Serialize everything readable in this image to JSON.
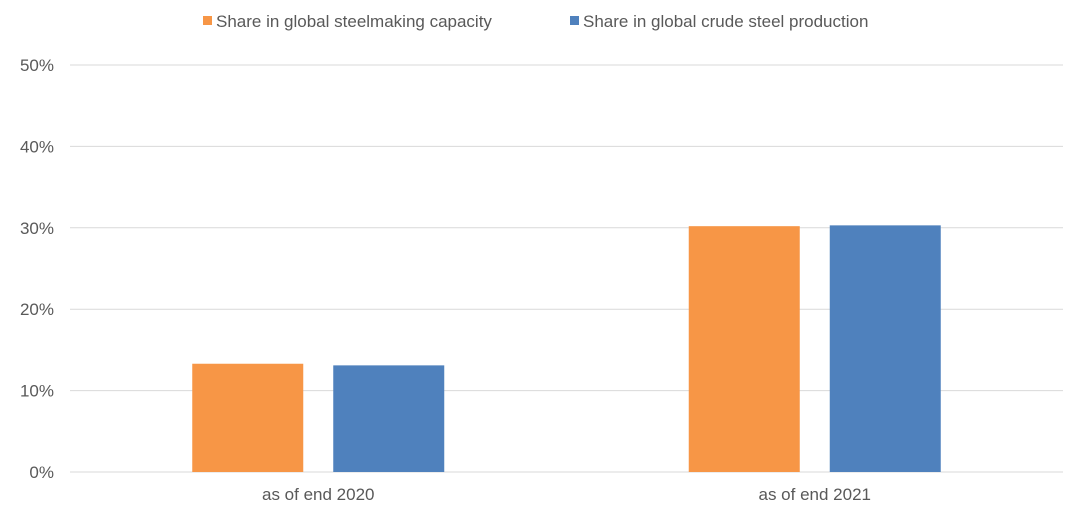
{
  "chart_data": {
    "type": "bar",
    "title": "",
    "xlabel": "",
    "ylabel": "",
    "categories": [
      "as of end 2020",
      "as of end 2021"
    ],
    "series": [
      {
        "name": "Share in global steelmaking capacity",
        "color": "#F79646",
        "values": [
          13.3,
          30.2
        ]
      },
      {
        "name": "Share in global crude steel production",
        "color": "#4F81BD",
        "values": [
          13.1,
          30.3
        ]
      }
    ],
    "ylim": [
      0,
      50
    ],
    "yticks": [
      0,
      10,
      20,
      30,
      40,
      50
    ],
    "ytick_labels": [
      "0%",
      "10%",
      "20%",
      "30%",
      "40%",
      "50%"
    ],
    "grid": true,
    "legend_position": "top-center"
  }
}
